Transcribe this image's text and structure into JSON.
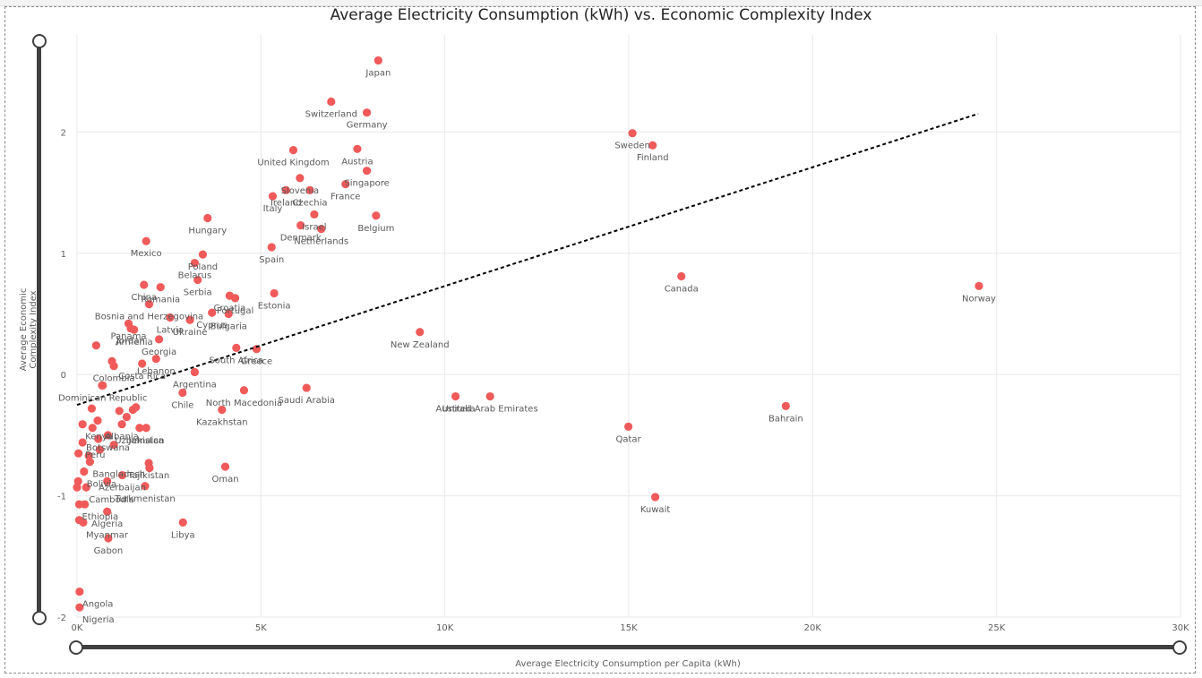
{
  "colors": {
    "point": "#F05A5A",
    "grid": "#E8E8E8",
    "tick": "#605E5C",
    "label": "#595959",
    "trend": "#000000"
  },
  "chart_data": {
    "type": "scatter",
    "title": "Average Electricity Consumption (kWh) vs. Economic Complexity Index",
    "xlabel": "Average Electricity Consumption per Capita (kWh)",
    "ylabel": "Average Economic Complexity Index",
    "xlim": [
      0,
      30000
    ],
    "ylim": [
      -2,
      2.8
    ],
    "x_ticks": [
      {
        "value": 0,
        "label": "0K"
      },
      {
        "value": 5000,
        "label": "5K"
      },
      {
        "value": 10000,
        "label": "10K"
      },
      {
        "value": 15000,
        "label": "15K"
      },
      {
        "value": 20000,
        "label": "20K"
      },
      {
        "value": 25000,
        "label": "25K"
      },
      {
        "value": 30000,
        "label": "30K"
      }
    ],
    "y_ticks": [
      {
        "value": -2,
        "label": "-2"
      },
      {
        "value": -1,
        "label": "-1"
      },
      {
        "value": 0,
        "label": "0"
      },
      {
        "value": 1,
        "label": "1"
      },
      {
        "value": 2,
        "label": "2"
      }
    ],
    "grid": true,
    "trend_line": {
      "x": [
        0,
        24500
      ],
      "y": [
        -0.25,
        2.15
      ],
      "style": "dashed"
    },
    "points": [
      {
        "name": "Japan",
        "x": 8190,
        "y": 2.59
      },
      {
        "name": "Switzerland",
        "x": 6910,
        "y": 2.25
      },
      {
        "name": "Germany",
        "x": 7880,
        "y": 2.16
      },
      {
        "name": "Sweden",
        "x": 15100,
        "y": 1.99
      },
      {
        "name": "Finland",
        "x": 15650,
        "y": 1.89
      },
      {
        "name": "United Kingdom",
        "x": 5880,
        "y": 1.85
      },
      {
        "name": "Austria",
        "x": 7620,
        "y": 1.86
      },
      {
        "name": "Slovenia",
        "x": 6060,
        "y": 1.62
      },
      {
        "name": "Singapore",
        "x": 7880,
        "y": 1.68
      },
      {
        "name": "Czechia",
        "x": 6330,
        "y": 1.52
      },
      {
        "name": "France",
        "x": 7300,
        "y": 1.57
      },
      {
        "name": "Italy",
        "x": 5320,
        "y": 1.47
      },
      {
        "name": "Ireland",
        "x": 5680,
        "y": 1.52
      },
      {
        "name": "Israel",
        "x": 6450,
        "y": 1.32
      },
      {
        "name": "Denmark",
        "x": 6080,
        "y": 1.23
      },
      {
        "name": "Belgium",
        "x": 8130,
        "y": 1.31
      },
      {
        "name": "Netherlands",
        "x": 6640,
        "y": 1.2
      },
      {
        "name": "Hungary",
        "x": 3550,
        "y": 1.29
      },
      {
        "name": "Poland",
        "x": 3420,
        "y": 0.99
      },
      {
        "name": "Mexico",
        "x": 1880,
        "y": 1.1
      },
      {
        "name": "Spain",
        "x": 5290,
        "y": 1.05
      },
      {
        "name": "Belarus",
        "x": 3200,
        "y": 0.92
      },
      {
        "name": "Serbia",
        "x": 3280,
        "y": 0.78
      },
      {
        "name": "China",
        "x": 1820,
        "y": 0.74
      },
      {
        "name": "Romania",
        "x": 2270,
        "y": 0.72
      },
      {
        "name": "Croatia",
        "x": 4150,
        "y": 0.65
      },
      {
        "name": "Portugal",
        "x": 4300,
        "y": 0.63
      },
      {
        "name": "Estonia",
        "x": 5360,
        "y": 0.67
      },
      {
        "name": "Bosnia and Herzegovina",
        "x": 1960,
        "y": 0.58
      },
      {
        "name": "Canada",
        "x": 16430,
        "y": 0.81
      },
      {
        "name": "Norway",
        "x": 24520,
        "y": 0.73
      },
      {
        "name": "Panama",
        "x": 1400,
        "y": 0.42
      },
      {
        "name": "Jordan",
        "x": 1460,
        "y": 0.38
      },
      {
        "name": "Ukraine",
        "x": 3070,
        "y": 0.45
      },
      {
        "name": "Cyprus",
        "x": 3670,
        "y": 0.51
      },
      {
        "name": "Latvia",
        "x": 2530,
        "y": 0.47
      },
      {
        "name": "Bulgaria",
        "x": 4120,
        "y": 0.5
      },
      {
        "name": "Armenia",
        "x": 1550,
        "y": 0.37
      },
      {
        "name": "Georgia",
        "x": 2230,
        "y": 0.29
      },
      {
        "name": "New Zealand",
        "x": 9320,
        "y": 0.35
      },
      {
        "name": "Lebanon",
        "x": 2150,
        "y": 0.13
      },
      {
        "name": "South Africa",
        "x": 4330,
        "y": 0.22
      },
      {
        "name": "Greece",
        "x": 4880,
        "y": 0.21
      },
      {
        "name": "Colombia",
        "x": 1000,
        "y": 0.07
      },
      {
        "name": "Costa Rica",
        "x": 1770,
        "y": 0.09
      },
      {
        "name": "Argentina",
        "x": 3200,
        "y": 0.02
      },
      {
        "name": "North Macedonia",
        "x": 4540,
        "y": -0.13
      },
      {
        "name": "United Arab Emirates",
        "x": 11230,
        "y": -0.18
      },
      {
        "name": "Australia",
        "x": 10290,
        "y": -0.18
      },
      {
        "name": "Saudi Arabia",
        "x": 6240,
        "y": -0.11
      },
      {
        "name": "Dominican Republic",
        "x": 700,
        "y": -0.09
      },
      {
        "name": "Chile",
        "x": 2870,
        "y": -0.15
      },
      {
        "name": "Kazakhstan",
        "x": 3940,
        "y": -0.29
      },
      {
        "name": "Bahrain",
        "x": 19270,
        "y": -0.26
      },
      {
        "name": "Kenya",
        "x": 150,
        "y": -0.41
      },
      {
        "name": "Albania",
        "x": 1220,
        "y": -0.41
      },
      {
        "name": "Jamaica",
        "x": 1880,
        "y": -0.44
      },
      {
        "name": "Botswana",
        "x": 840,
        "y": -0.5
      },
      {
        "name": "Uzbekistan",
        "x": 1700,
        "y": -0.44
      },
      {
        "name": "Qatar",
        "x": 14990,
        "y": -0.43
      },
      {
        "name": "Peru",
        "x": 150,
        "y": -0.56
      },
      {
        "name": "Tajikistan",
        "x": 1950,
        "y": -0.73
      },
      {
        "name": "Bangladesh",
        "x": 350,
        "y": -0.72
      },
      {
        "name": "Oman",
        "x": 4030,
        "y": -0.76
      },
      {
        "name": "Azerbaijan",
        "x": 1230,
        "y": -0.83
      },
      {
        "name": "Bolivia",
        "x": 190,
        "y": -0.8
      },
      {
        "name": "Cambodia",
        "x": 250,
        "y": -0.93
      },
      {
        "name": "Turkmenistan",
        "x": 1850,
        "y": -0.92
      },
      {
        "name": "Kuwait",
        "x": 15720,
        "y": -1.01
      },
      {
        "name": "Ethiopia",
        "x": 60,
        "y": -1.07
      },
      {
        "name": "Algeria",
        "x": 820,
        "y": -1.13
      },
      {
        "name": "Libya",
        "x": 2880,
        "y": -1.22
      },
      {
        "name": "Myanmar",
        "x": 170,
        "y": -1.22
      },
      {
        "name": "Gabon",
        "x": 850,
        "y": -1.35
      },
      {
        "name": "Angola",
        "x": 70,
        "y": -1.79
      },
      {
        "name": "Nigeria",
        "x": 70,
        "y": -1.92
      }
    ],
    "unlabeled_points": [
      {
        "x": 520,
        "y": 0.24
      },
      {
        "x": 680,
        "y": -0.09
      },
      {
        "x": 950,
        "y": 0.11
      },
      {
        "x": 400,
        "y": -0.28
      },
      {
        "x": 1150,
        "y": -0.3
      },
      {
        "x": 1350,
        "y": -0.35
      },
      {
        "x": 1520,
        "y": -0.29
      },
      {
        "x": 1600,
        "y": -0.27
      },
      {
        "x": 420,
        "y": -0.44
      },
      {
        "x": 560,
        "y": -0.38
      },
      {
        "x": 580,
        "y": -0.53
      },
      {
        "x": 620,
        "y": -0.62
      },
      {
        "x": 320,
        "y": -0.67
      },
      {
        "x": 1000,
        "y": -0.58
      },
      {
        "x": 1970,
        "y": -0.77
      },
      {
        "x": 820,
        "y": -0.88
      },
      {
        "x": 30,
        "y": -0.88
      },
      {
        "x": 40,
        "y": -0.65
      },
      {
        "x": 0,
        "y": -0.93
      },
      {
        "x": 210,
        "y": -1.07
      },
      {
        "x": 60,
        "y": -1.2
      }
    ]
  }
}
